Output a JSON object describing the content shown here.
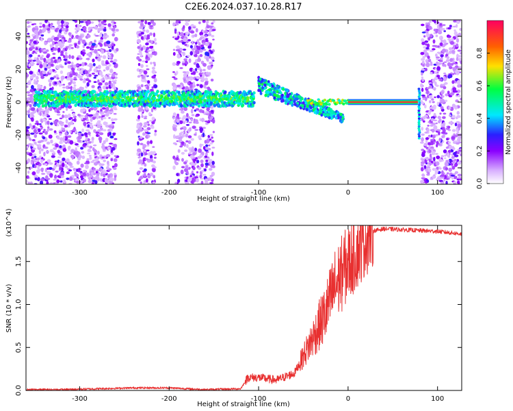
{
  "figure_title": "C2E6.2024.037.10.28.R17",
  "colors": {
    "snr_line": "#e83030",
    "colormap": [
      "#ffffff",
      "#8a00ff",
      "#2a20ff",
      "#00e8ff",
      "#00ff40",
      "#ffe000",
      "#ff6000",
      "#ff0060"
    ]
  },
  "chart_data": [
    {
      "type": "heatmap",
      "title": "C2E6.2024.037.10.28.R17",
      "xlabel": "Height of straight line (km)",
      "ylabel": "Frequency (Hz)",
      "xlim": [
        -360,
        127
      ],
      "ylim": [
        -50,
        50
      ],
      "xticks": [
        -300,
        -200,
        -100,
        0,
        100
      ],
      "yticks": [
        -40,
        -20,
        0,
        20,
        40
      ],
      "colorbar": {
        "label": "Normalized spectral amplitude",
        "range": [
          0.0,
          1.0
        ],
        "ticks": [
          0.0,
          0.2,
          0.4,
          0.6,
          0.8
        ],
        "tick_labels": [
          "0.0",
          "0.2",
          "0.4",
          "0.6",
          "0.8"
        ]
      },
      "features": {
        "noise_regions_km": [
          [
            -360,
            -258
          ],
          [
            -235,
            -215
          ],
          [
            -195,
            -150
          ],
          [
            82,
            127
          ]
        ],
        "ridge_center_hz": 2,
        "ridge_km": [
          -350,
          -105
        ],
        "scatter_ridge_km": [
          -100,
          -5
        ],
        "scatter_ridge_hz": [
          10,
          -10
        ],
        "steady_tone_km": [
          0,
          78
        ],
        "steady_tone_hz": 0,
        "blank_region_km": [
          -5,
          78
        ]
      },
      "grid": false
    },
    {
      "type": "line",
      "xlabel": "Height of straight line (km)",
      "ylabel": "SNR (10 * v/v)",
      "y_multiplier": "(x10^4)",
      "xlim": [
        -360,
        127
      ],
      "ylim": [
        0,
        1.92
      ],
      "xticks": [
        -300,
        -200,
        -100,
        0,
        100
      ],
      "yticks": [
        0.0,
        0.5,
        1.0,
        1.5
      ],
      "series": [
        {
          "x": [
            -360,
            -320,
            -280,
            -240,
            -200,
            -160,
            -120,
            -112,
            -100,
            -80,
            -60,
            -45,
            -35,
            -25,
            -15,
            -5,
            5,
            15,
            25,
            40,
            60,
            80,
            100,
            127
          ],
          "values": [
            0.01,
            0.01,
            0.02,
            0.03,
            0.03,
            0.01,
            0.02,
            0.15,
            0.15,
            0.12,
            0.2,
            0.5,
            0.7,
            0.9,
            1.2,
            1.4,
            1.55,
            1.7,
            1.85,
            1.88,
            1.87,
            1.86,
            1.85,
            1.82
          ]
        }
      ]
    }
  ]
}
